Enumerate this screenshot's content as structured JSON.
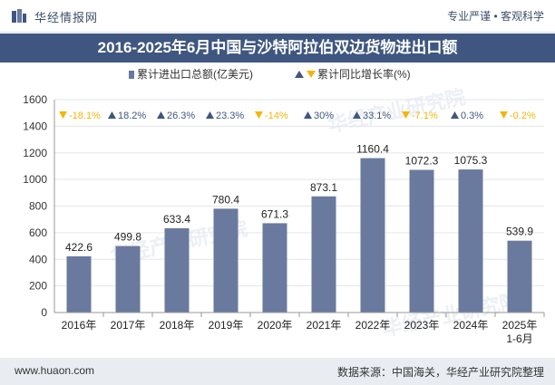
{
  "header": {
    "brand": "华经情报网",
    "slogan": "专业严谨 • 客观科学"
  },
  "title": "2016-2025年6月中国与沙特阿拉伯双边货物进出口额",
  "watermark": "华经产业研究院",
  "footer": {
    "site": "www.huaon.com",
    "source": "数据来源：中国海关，华经产业研究院整理"
  },
  "colors": {
    "bar": "#6a7a9e",
    "up": "#3f5680",
    "down": "#f2b705",
    "title_band": "#3f5680"
  },
  "chart_data": {
    "type": "bar",
    "categories": [
      "2016年",
      "2017年",
      "2018年",
      "2019年",
      "2020年",
      "2021年",
      "2022年",
      "2023年",
      "2024年",
      "2025年\n1-6月"
    ],
    "series": [
      {
        "name": "累计进出口总额(亿美元)",
        "values": [
          422.6,
          499.8,
          633.4,
          780.4,
          671.3,
          873.1,
          1160.4,
          1072.3,
          1075.3,
          539.9
        ],
        "labels": [
          "422.6",
          "499.8",
          "633.4",
          "780.4",
          "671.3",
          "873.1",
          "1160.4",
          "1072.3",
          "1075.3",
          "539.9"
        ]
      },
      {
        "name": "累计同比增长率(%)",
        "values": [
          -18.1,
          18.2,
          26.3,
          23.3,
          -14,
          30,
          33.1,
          -7.1,
          0.3,
          -0.2
        ],
        "labels": [
          "-18.1%",
          "18.2%",
          "26.3%",
          "23.3%",
          "-14%",
          "30%",
          "33.1%",
          "-7.1%",
          "0.3%",
          "-0.2%"
        ]
      }
    ],
    "ylim": [
      0,
      1600
    ],
    "yticks": [
      "0",
      "200",
      "400",
      "600",
      "800",
      "1000",
      "1200",
      "1400",
      "1600"
    ],
    "legend_position": "top-center"
  }
}
